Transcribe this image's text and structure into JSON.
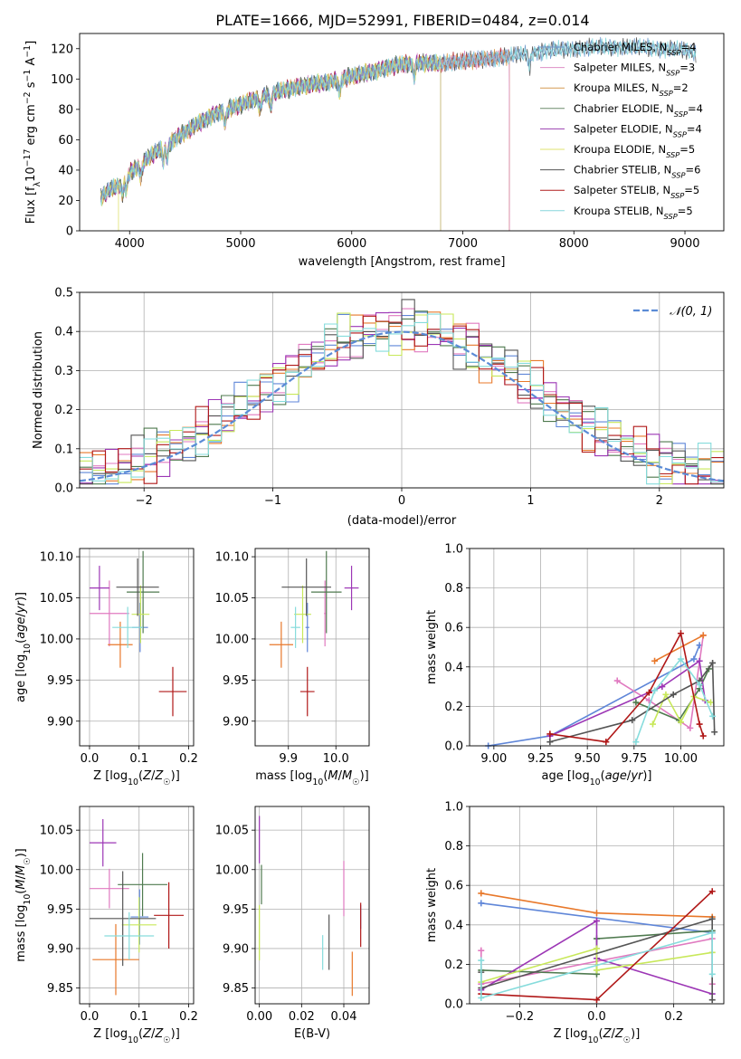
{
  "title": "PLATE=1666, MJD=52991, FIBERID=0484, z=0.014",
  "colors": [
    "#6f98cd",
    "#de8fc6",
    "#d59a52",
    "#6c8c6c",
    "#9a3fb0",
    "#dfe36f",
    "#545454",
    "#b01f1f",
    "#86d6db"
  ],
  "line_colors": [
    "#5f86d8",
    "#e07ac0",
    "#e8782a",
    "#4f7a4f",
    "#9c36b5",
    "#c8e85a",
    "#555555",
    "#b01818",
    "#86dcdc"
  ],
  "chart_data": [
    {
      "id": "spectrum",
      "type": "line",
      "xlabel": "wavelength [Angstrom, rest frame]",
      "ylabel": "Flux [f_λ 10⁻¹⁷ erg cm⁻² s⁻¹ A⁻¹]",
      "xlim": [
        3550,
        9350
      ],
      "ylim": [
        0,
        130
      ],
      "xticks": [
        4000,
        5000,
        6000,
        7000,
        8000,
        9000
      ],
      "yticks": [
        0,
        20,
        40,
        60,
        80,
        100,
        120
      ],
      "grid": false,
      "legend_position": "top-right",
      "continuum": {
        "x": [
          3740,
          3800,
          3900,
          4000,
          4100,
          4200,
          4400,
          4600,
          4800,
          5000,
          5200,
          5400,
          5600,
          5800,
          6000,
          6200,
          6400,
          6600,
          6800,
          7000,
          7200,
          7400,
          7600,
          7800,
          8000,
          8200,
          8400,
          8600,
          8800,
          9000,
          9100
        ],
        "y": [
          22,
          26,
          30,
          38,
          44,
          50,
          60,
          70,
          78,
          83,
          89,
          93,
          96,
          98,
          102,
          105,
          109,
          111,
          110,
          112,
          113,
          115,
          117,
          119,
          120,
          121,
          121,
          121,
          120,
          119,
          117
        ]
      },
      "series": [
        {
          "name": "Chabrier MILES, N_SSP=4",
          "x_end": 9100
        },
        {
          "name": "Salpeter MILES, N_SSP=3",
          "x_end": 7420
        },
        {
          "name": "Kroupa MILES, N_SSP=2",
          "x_end": 7420
        },
        {
          "name": "Chabrier ELODIE, N_SSP=4",
          "x_end": 6800
        },
        {
          "name": "Salpeter ELODIE, N_SSP=4",
          "x_end": 6800
        },
        {
          "name": "Kroupa ELODIE, N_SSP=5",
          "x_end": 6800
        },
        {
          "name": "Chabrier STELIB, N_SSP=6",
          "x_end": 9100
        },
        {
          "name": "Salpeter STELIB, N_SSP=5",
          "x_end": 7420
        },
        {
          "name": "Kroupa STELIB, N_SSP=5",
          "x_end": 9100
        }
      ]
    },
    {
      "id": "residuals",
      "type": "step-histogram",
      "xlabel": "(data-model)/error",
      "ylabel": "Normed distribution",
      "xlim": [
        -2.5,
        2.5
      ],
      "ylim": [
        0,
        0.5
      ],
      "xticks": [
        -2,
        -1,
        0,
        1,
        2
      ],
      "yticks": [
        0.0,
        0.1,
        0.2,
        0.3,
        0.4,
        0.5
      ],
      "grid": true,
      "legend_position": "top-right",
      "reference_curve": {
        "name": "𝒩(0, 1)",
        "mu": 0,
        "sigma": 1
      }
    },
    {
      "id": "age-vs-Z",
      "type": "errorbar",
      "xlabel": "Z [log₁₀(Z/Z☉)]",
      "ylabel": "age  [log₁₀(age/yr)]",
      "xlim": [
        -0.02,
        0.21
      ],
      "ylim": [
        9.87,
        10.11
      ],
      "xticks": [
        0.0,
        0.1,
        0.2
      ],
      "yticks": [
        9.9,
        9.95,
        10.0,
        10.05,
        10.1
      ],
      "grid": true,
      "points": [
        {
          "x": 0.102,
          "y": 10.014,
          "xerr": 0.016,
          "yerr": 0.03
        },
        {
          "x": 0.04,
          "y": 10.031,
          "xerr": 0.04,
          "yerr": 0.04
        },
        {
          "x": 0.062,
          "y": 9.993,
          "xerr": 0.025,
          "yerr": 0.028
        },
        {
          "x": 0.108,
          "y": 10.057,
          "xerr": 0.033,
          "yerr": 0.05
        },
        {
          "x": 0.02,
          "y": 10.062,
          "xerr": 0.02,
          "yerr": 0.027
        },
        {
          "x": 0.103,
          "y": 10.03,
          "xerr": 0.018,
          "yerr": 0.035
        },
        {
          "x": 0.097,
          "y": 10.063,
          "xerr": 0.043,
          "yerr": 0.035
        },
        {
          "x": 0.168,
          "y": 9.936,
          "xerr": 0.028,
          "yerr": 0.03
        },
        {
          "x": 0.077,
          "y": 10.014,
          "xerr": 0.031,
          "yerr": 0.025
        }
      ]
    },
    {
      "id": "age-vs-mass",
      "type": "errorbar",
      "xlabel": "mass [log₁₀(M/M☉)]",
      "ylabel": "",
      "xlim": [
        9.83,
        10.07
      ],
      "ylim": [
        9.87,
        10.11
      ],
      "xticks": [
        9.9,
        10.0
      ],
      "yticks": [
        9.9,
        9.95,
        10.0,
        10.05,
        10.1
      ],
      "grid": true,
      "points": [
        {
          "x": 9.94,
          "y": 10.014,
          "xerr": 0.004,
          "yerr": 0.03
        },
        {
          "x": 9.977,
          "y": 10.031,
          "xerr": 0.002,
          "yerr": 0.04
        },
        {
          "x": 9.885,
          "y": 9.993,
          "xerr": 0.025,
          "yerr": 0.028
        },
        {
          "x": 9.98,
          "y": 10.057,
          "xerr": 0.032,
          "yerr": 0.05
        },
        {
          "x": 10.033,
          "y": 10.062,
          "xerr": 0.015,
          "yerr": 0.027
        },
        {
          "x": 9.93,
          "y": 10.03,
          "xerr": 0.018,
          "yerr": 0.035
        },
        {
          "x": 9.938,
          "y": 10.063,
          "xerr": 0.052,
          "yerr": 0.035
        },
        {
          "x": 9.94,
          "y": 9.936,
          "xerr": 0.015,
          "yerr": 0.03
        },
        {
          "x": 9.915,
          "y": 10.014,
          "xerr": 0.01,
          "yerr": 0.025
        }
      ]
    },
    {
      "id": "mass-weight-vs-age",
      "type": "line",
      "xlabel": "age  [log₁₀(age/yr)]",
      "ylabel": "mass weight",
      "xlim": [
        8.87,
        10.23
      ],
      "ylim": [
        0,
        1.0
      ],
      "xticks": [
        9.0,
        9.25,
        9.5,
        9.75,
        10.0
      ],
      "yticks": [
        0.0,
        0.2,
        0.4,
        0.6,
        0.8,
        1.0
      ],
      "grid": true,
      "series": [
        {
          "x": [
            8.97,
            9.3,
            10.07,
            10.1
          ],
          "y": [
            0.0,
            0.05,
            0.44,
            0.51
          ]
        },
        {
          "x": [
            9.66,
            9.83,
            10.05,
            10.12
          ],
          "y": [
            0.33,
            0.23,
            0.09,
            0.56
          ]
        },
        {
          "x": [
            9.86,
            10.12
          ],
          "y": [
            0.43,
            0.56
          ]
        },
        {
          "x": [
            9.76,
            9.99,
            10.1,
            10.15
          ],
          "y": [
            0.22,
            0.13,
            0.29,
            0.39
          ]
        },
        {
          "x": [
            9.3,
            9.9,
            10.1,
            10.13
          ],
          "y": [
            0.05,
            0.3,
            0.43,
            0.23
          ]
        },
        {
          "x": [
            9.85,
            9.92,
            10.0,
            10.07,
            10.16
          ],
          "y": [
            0.11,
            0.26,
            0.12,
            0.25,
            0.22
          ]
        },
        {
          "x": [
            9.3,
            9.74,
            9.96,
            10.1,
            10.17,
            10.18
          ],
          "y": [
            0.02,
            0.13,
            0.26,
            0.33,
            0.42,
            0.07
          ]
        },
        {
          "x": [
            9.3,
            9.6,
            9.83,
            10.0,
            10.1,
            10.12
          ],
          "y": [
            0.06,
            0.02,
            0.27,
            0.57,
            0.11,
            0.05
          ]
        },
        {
          "x": [
            9.76,
            9.86,
            10.0,
            10.1,
            10.17
          ],
          "y": [
            0.02,
            0.28,
            0.44,
            0.31,
            0.15
          ]
        }
      ]
    },
    {
      "id": "mass-vs-Z",
      "type": "errorbar",
      "xlabel": "Z [log₁₀(Z/Z☉)]",
      "ylabel": "mass [log₁₀(M/M☉)]",
      "xlim": [
        -0.02,
        0.21
      ],
      "ylim": [
        9.83,
        10.08
      ],
      "xticks": [
        0.0,
        0.1,
        0.2
      ],
      "yticks": [
        9.85,
        9.9,
        9.95,
        10.0,
        10.05
      ],
      "grid": true,
      "points": [
        {
          "x": 0.101,
          "y": 9.94,
          "xerr": 0.018,
          "yerr": 0.035
        },
        {
          "x": 0.04,
          "y": 9.976,
          "xerr": 0.04,
          "yerr": 0.025
        },
        {
          "x": 0.053,
          "y": 9.886,
          "xerr": 0.047,
          "yerr": 0.045
        },
        {
          "x": 0.107,
          "y": 9.981,
          "xerr": 0.05,
          "yerr": 0.04
        },
        {
          "x": 0.027,
          "y": 10.034,
          "xerr": 0.027,
          "yerr": 0.03
        },
        {
          "x": 0.1,
          "y": 9.93,
          "xerr": 0.035,
          "yerr": 0.035
        },
        {
          "x": 0.067,
          "y": 9.938,
          "xerr": 0.067,
          "yerr": 0.06
        },
        {
          "x": 0.16,
          "y": 9.942,
          "xerr": 0.03,
          "yerr": 0.042
        },
        {
          "x": 0.08,
          "y": 9.916,
          "xerr": 0.05,
          "yerr": 0.03
        }
      ]
    },
    {
      "id": "mass-vs-EBV",
      "type": "errorbar",
      "xlabel": "E(B-V)",
      "ylabel": "",
      "xlim": [
        -0.002,
        0.052
      ],
      "ylim": [
        9.83,
        10.08
      ],
      "xticks": [
        0.0,
        0.02,
        0.04
      ],
      "yticks": [
        9.85,
        9.9,
        9.95,
        10.0,
        10.05
      ],
      "grid": true,
      "points": [
        {
          "x": 0.048,
          "y": 9.94,
          "xerr": 0,
          "yerr": 0.015
        },
        {
          "x": 0.04,
          "y": 9.976,
          "xerr": 0,
          "yerr": 0.035
        },
        {
          "x": 0.044,
          "y": 9.868,
          "xerr": 0,
          "yerr": 0.028
        },
        {
          "x": 0.001,
          "y": 9.981,
          "xerr": 0,
          "yerr": 0.025
        },
        {
          "x": 0.0,
          "y": 10.038,
          "xerr": 0,
          "yerr": 0.03
        },
        {
          "x": 0.0,
          "y": 9.92,
          "xerr": 0,
          "yerr": 0.035
        },
        {
          "x": 0.033,
          "y": 9.908,
          "xerr": 0,
          "yerr": 0.035
        },
        {
          "x": 0.048,
          "y": 9.93,
          "xerr": 0,
          "yerr": 0.028
        },
        {
          "x": 0.03,
          "y": 9.895,
          "xerr": 0,
          "yerr": 0.022
        }
      ]
    },
    {
      "id": "mass-weight-vs-Z",
      "type": "line",
      "xlabel": "Z [log₁₀(Z/Z☉)]",
      "ylabel": "mass weight",
      "xlim": [
        -0.33,
        0.33
      ],
      "ylim": [
        0,
        1.0
      ],
      "xticks": [
        -0.2,
        0.0,
        0.2
      ],
      "yticks": [
        0.0,
        0.2,
        0.4,
        0.6,
        0.8,
        1.0
      ],
      "grid": true,
      "series": [
        {
          "x": [
            -0.3,
            0.3
          ],
          "y": [
            0.51,
            0.36
          ]
        },
        {
          "x": [
            -0.3,
            -0.3,
            0.3,
            0.3
          ],
          "y": [
            0.27,
            0.1,
            0.33,
            0.1
          ]
        },
        {
          "x": [
            -0.3,
            0.0,
            0.3
          ],
          "y": [
            0.56,
            0.46,
            0.44
          ]
        },
        {
          "x": [
            -0.3,
            0.0,
            0.0,
            0.3
          ],
          "y": [
            0.17,
            0.15,
            0.33,
            0.37
          ]
        },
        {
          "x": [
            -0.3,
            0.0,
            0.0,
            0.3
          ],
          "y": [
            0.07,
            0.42,
            0.23,
            0.05
          ]
        },
        {
          "x": [
            -0.3,
            0.0,
            0.0,
            0.3
          ],
          "y": [
            0.11,
            0.28,
            0.17,
            0.26
          ]
        },
        {
          "x": [
            -0.3,
            -0.3,
            0.3,
            0.3
          ],
          "y": [
            0.16,
            0.08,
            0.43,
            0.02
          ]
        },
        {
          "x": [
            -0.3,
            0.0,
            0.3
          ],
          "y": [
            0.05,
            0.02,
            0.57
          ]
        },
        {
          "x": [
            -0.3,
            -0.3,
            0.3,
            0.3
          ],
          "y": [
            0.22,
            0.03,
            0.36,
            0.15
          ]
        }
      ]
    }
  ]
}
